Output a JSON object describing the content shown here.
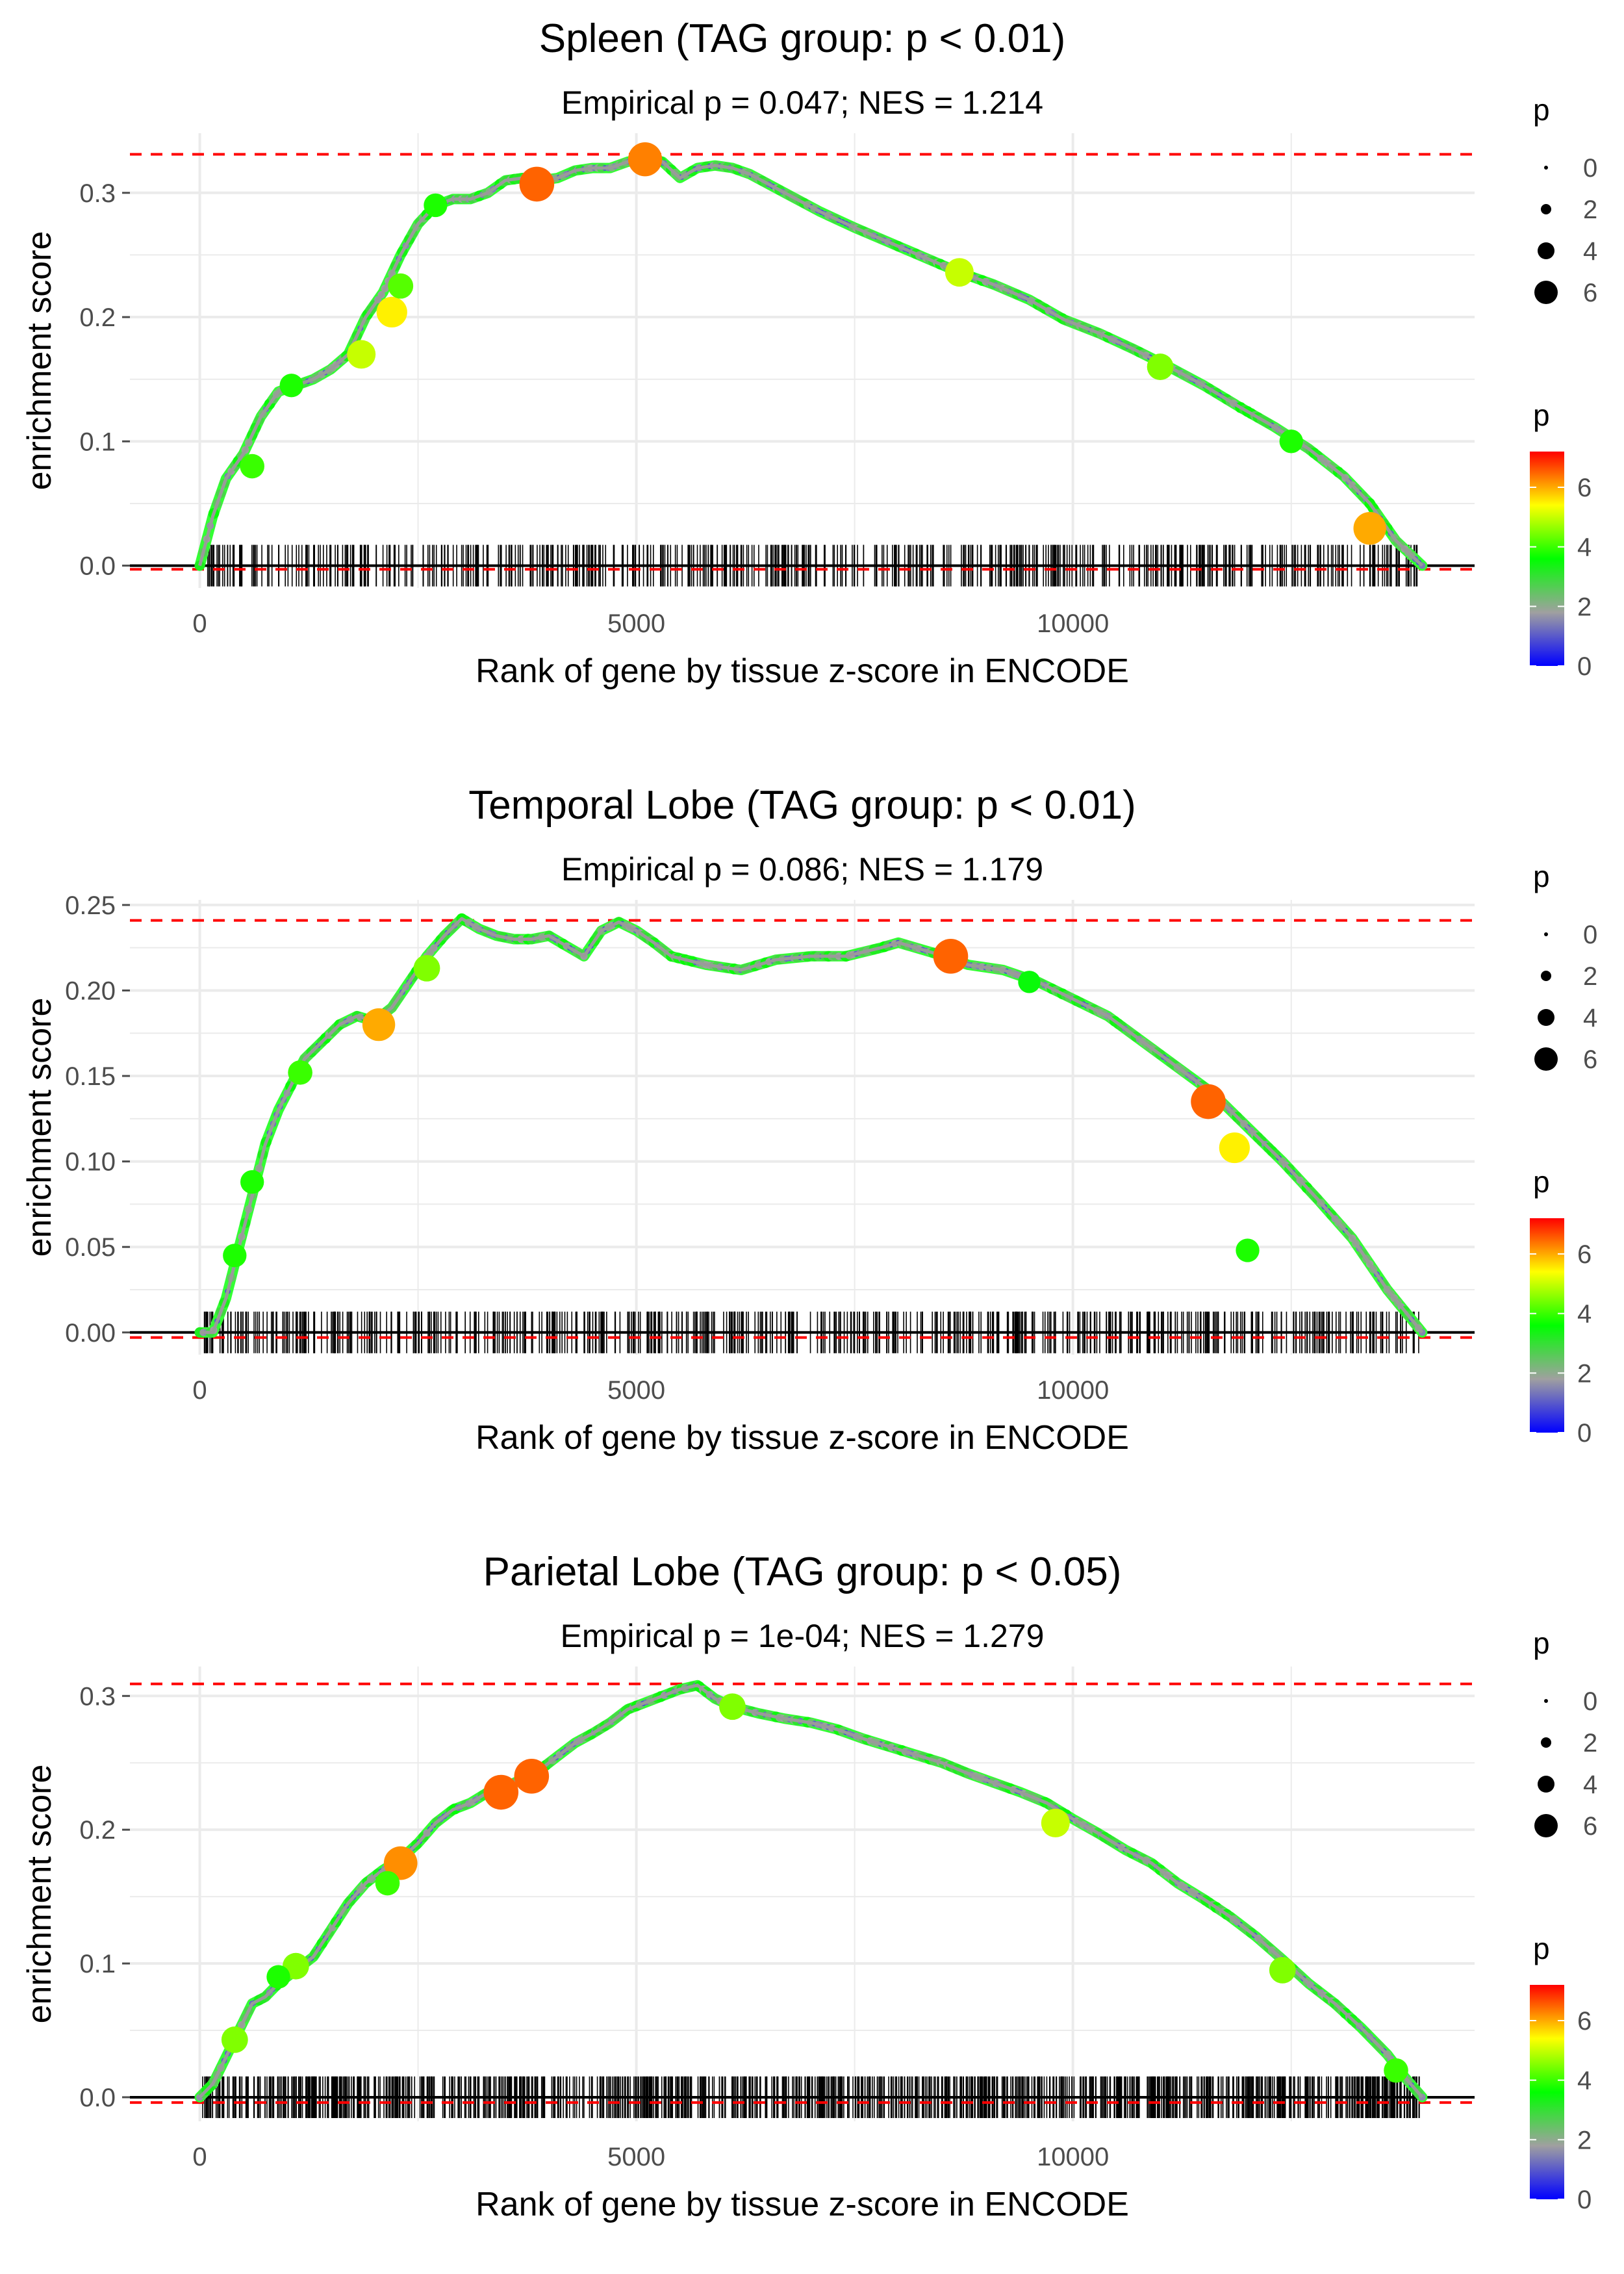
{
  "chart_data": [
    {
      "type": "line",
      "title": "Spleen (TAG group: p < 0.01)",
      "subtitle": "Empirical p = 0.047; NES = 1.214",
      "xlabel": "Rank of gene by tissue z-score in ENCODE",
      "ylabel": "enrichment score",
      "xlim": [
        -800,
        14600
      ],
      "ylim": [
        -0.018,
        0.348
      ],
      "x_ticks": [
        0,
        5000,
        10000
      ],
      "x_tick_labels": [
        "0",
        "5000",
        "10000"
      ],
      "y_ticks": [
        0.0,
        0.1,
        0.2,
        0.3
      ],
      "y_tick_labels": [
        "0.0",
        "0.1",
        "0.2",
        "0.3"
      ],
      "max_es_line": 0.331,
      "min_es_line": -0.003,
      "x_max_rank": 14000,
      "series": [
        {
          "name": "running enrichment score",
          "x": [
            0,
            150,
            300,
            500,
            700,
            900,
            1100,
            1300,
            1500,
            1700,
            1900,
            2100,
            2300,
            2500,
            2700,
            2900,
            3100,
            3300,
            3500,
            3700,
            3900,
            4100,
            4300,
            4500,
            4700,
            4900,
            5100,
            5300,
            5500,
            5700,
            5900,
            6100,
            6300,
            6700,
            7100,
            7500,
            7900,
            8300,
            8700,
            9100,
            9500,
            9900,
            10300,
            10700,
            11100,
            11500,
            11900,
            12300,
            12700,
            13100,
            13400,
            13700,
            14000
          ],
          "values": [
            0.0,
            0.04,
            0.07,
            0.09,
            0.12,
            0.14,
            0.145,
            0.15,
            0.158,
            0.17,
            0.2,
            0.22,
            0.25,
            0.275,
            0.29,
            0.295,
            0.295,
            0.3,
            0.31,
            0.312,
            0.31,
            0.312,
            0.318,
            0.32,
            0.32,
            0.325,
            0.328,
            0.325,
            0.312,
            0.32,
            0.322,
            0.32,
            0.315,
            0.3,
            0.285,
            0.272,
            0.26,
            0.248,
            0.236,
            0.226,
            0.214,
            0.198,
            0.187,
            0.174,
            0.16,
            0.145,
            0.128,
            0.112,
            0.094,
            0.072,
            0.05,
            0.02,
            0.0
          ]
        }
      ],
      "highlight_points": [
        {
          "x": 3860,
          "y": 0.307,
          "p": 6.5
        },
        {
          "x": 5100,
          "y": 0.327,
          "p": 6.3
        },
        {
          "x": 2200,
          "y": 0.204,
          "p": 5.5
        },
        {
          "x": 1850,
          "y": 0.17,
          "p": 5.0
        },
        {
          "x": 8700,
          "y": 0.236,
          "p": 5.0
        },
        {
          "x": 13400,
          "y": 0.03,
          "p": 6.0
        },
        {
          "x": 2300,
          "y": 0.225,
          "p": 4.2
        },
        {
          "x": 2700,
          "y": 0.29,
          "p": 3.8
        },
        {
          "x": 600,
          "y": 0.08,
          "p": 4.0
        },
        {
          "x": 1050,
          "y": 0.145,
          "p": 3.8
        },
        {
          "x": 11000,
          "y": 0.16,
          "p": 4.5
        },
        {
          "x": 12500,
          "y": 0.1,
          "p": 3.8
        }
      ],
      "gene_ticks_n": 600,
      "size_legend": {
        "title": "p",
        "values": [
          "0",
          "2",
          "4",
          "6"
        ]
      },
      "color_legend": {
        "title": "p",
        "ticks": [
          "0",
          "2",
          "4",
          "6"
        ],
        "range": [
          0,
          7.2
        ]
      }
    },
    {
      "type": "line",
      "title": "Temporal Lobe (TAG group: p < 0.01)",
      "subtitle": "Empirical p = 0.086; NES = 1.179",
      "xlabel": "Rank of gene by tissue z-score in ENCODE",
      "ylabel": "enrichment score",
      "xlim": [
        -800,
        14600
      ],
      "ylim": [
        -0.013,
        0.253
      ],
      "x_ticks": [
        0,
        5000,
        10000
      ],
      "x_tick_labels": [
        "0",
        "5000",
        "10000"
      ],
      "y_ticks": [
        0.0,
        0.05,
        0.1,
        0.15,
        0.2,
        0.25
      ],
      "y_tick_labels": [
        "0.00",
        "0.05",
        "0.10",
        "0.15",
        "0.20",
        "0.25"
      ],
      "max_es_line": 0.241,
      "min_es_line": -0.003,
      "x_max_rank": 14000,
      "series": [
        {
          "name": "running enrichment score",
          "x": [
            0,
            150,
            300,
            450,
            600,
            750,
            900,
            1050,
            1200,
            1400,
            1600,
            1800,
            2000,
            2200,
            2400,
            2600,
            2800,
            3000,
            3200,
            3400,
            3600,
            3800,
            4000,
            4200,
            4400,
            4600,
            4800,
            5000,
            5200,
            5400,
            5800,
            6200,
            6600,
            7000,
            7400,
            7800,
            8000,
            8400,
            8800,
            9200,
            9600,
            10000,
            10400,
            10800,
            11200,
            11600,
            12000,
            12400,
            12800,
            13200,
            13600,
            14000
          ],
          "values": [
            0.0,
            0.0,
            0.02,
            0.05,
            0.08,
            0.11,
            0.13,
            0.145,
            0.16,
            0.17,
            0.18,
            0.185,
            0.182,
            0.19,
            0.205,
            0.22,
            0.232,
            0.242,
            0.236,
            0.232,
            0.23,
            0.23,
            0.232,
            0.226,
            0.22,
            0.235,
            0.24,
            0.235,
            0.228,
            0.22,
            0.215,
            0.212,
            0.218,
            0.22,
            0.22,
            0.225,
            0.228,
            0.222,
            0.215,
            0.212,
            0.205,
            0.195,
            0.185,
            0.17,
            0.155,
            0.14,
            0.12,
            0.1,
            0.078,
            0.055,
            0.025,
            0.0
          ]
        }
      ],
      "highlight_points": [
        {
          "x": 2050,
          "y": 0.18,
          "p": 6.0
        },
        {
          "x": 8600,
          "y": 0.22,
          "p": 6.5
        },
        {
          "x": 11550,
          "y": 0.135,
          "p": 6.5
        },
        {
          "x": 11850,
          "y": 0.108,
          "p": 5.5
        },
        {
          "x": 2600,
          "y": 0.213,
          "p": 4.5
        },
        {
          "x": 1150,
          "y": 0.152,
          "p": 4.0
        },
        {
          "x": 600,
          "y": 0.088,
          "p": 3.8
        },
        {
          "x": 400,
          "y": 0.045,
          "p": 3.8
        },
        {
          "x": 9500,
          "y": 0.205,
          "p": 3.5
        },
        {
          "x": 12000,
          "y": 0.048,
          "p": 3.8
        }
      ],
      "gene_ticks_n": 600,
      "size_legend": {
        "title": "p",
        "values": [
          "0",
          "2",
          "4",
          "6"
        ]
      },
      "color_legend": {
        "title": "p",
        "ticks": [
          "0",
          "2",
          "4",
          "6"
        ],
        "range": [
          0,
          7.2
        ]
      }
    },
    {
      "type": "line",
      "title": "Parietal Lobe (TAG group: p < 0.05)",
      "subtitle": "Empirical p = 1e-04; NES = 1.279",
      "xlabel": "Rank of gene by tissue z-score in ENCODE",
      "ylabel": "enrichment score",
      "xlim": [
        -800,
        14600
      ],
      "ylim": [
        -0.018,
        0.322
      ],
      "x_ticks": [
        0,
        5000,
        10000
      ],
      "x_tick_labels": [
        "0",
        "5000",
        "10000"
      ],
      "y_ticks": [
        0.0,
        0.1,
        0.2,
        0.3
      ],
      "y_tick_labels": [
        "0.0",
        "0.1",
        "0.2",
        "0.3"
      ],
      "max_es_line": 0.309,
      "min_es_line": -0.004,
      "x_max_rank": 14000,
      "series": [
        {
          "name": "running enrichment score",
          "x": [
            0,
            150,
            300,
            450,
            600,
            750,
            900,
            1100,
            1300,
            1500,
            1700,
            1900,
            2100,
            2300,
            2500,
            2700,
            2900,
            3100,
            3300,
            3500,
            3700,
            3900,
            4100,
            4300,
            4500,
            4700,
            4900,
            5100,
            5300,
            5500,
            5700,
            5900,
            6100,
            6400,
            6700,
            7000,
            7300,
            7600,
            7900,
            8200,
            8500,
            8800,
            9100,
            9400,
            9700,
            10000,
            10300,
            10600,
            10900,
            11200,
            11500,
            11800,
            12100,
            12400,
            12700,
            13000,
            13300,
            13600,
            13800,
            14000
          ],
          "values": [
            0.0,
            0.01,
            0.03,
            0.05,
            0.07,
            0.075,
            0.085,
            0.095,
            0.105,
            0.125,
            0.145,
            0.16,
            0.17,
            0.178,
            0.19,
            0.205,
            0.215,
            0.22,
            0.228,
            0.232,
            0.238,
            0.245,
            0.255,
            0.265,
            0.272,
            0.28,
            0.29,
            0.295,
            0.3,
            0.305,
            0.308,
            0.298,
            0.292,
            0.287,
            0.283,
            0.28,
            0.275,
            0.268,
            0.262,
            0.256,
            0.25,
            0.242,
            0.235,
            0.228,
            0.22,
            0.208,
            0.197,
            0.185,
            0.175,
            0.16,
            0.148,
            0.135,
            0.12,
            0.103,
            0.085,
            0.07,
            0.052,
            0.032,
            0.015,
            0.0
          ]
        }
      ],
      "highlight_points": [
        {
          "x": 2300,
          "y": 0.175,
          "p": 6.2
        },
        {
          "x": 3450,
          "y": 0.228,
          "p": 6.5
        },
        {
          "x": 3800,
          "y": 0.24,
          "p": 6.5
        },
        {
          "x": 2150,
          "y": 0.16,
          "p": 4.0
        },
        {
          "x": 1100,
          "y": 0.098,
          "p": 4.5
        },
        {
          "x": 900,
          "y": 0.09,
          "p": 3.8
        },
        {
          "x": 400,
          "y": 0.043,
          "p": 4.5
        },
        {
          "x": 6100,
          "y": 0.292,
          "p": 4.5
        },
        {
          "x": 9800,
          "y": 0.205,
          "p": 5.0
        },
        {
          "x": 12400,
          "y": 0.095,
          "p": 4.5
        },
        {
          "x": 13700,
          "y": 0.02,
          "p": 4.0
        }
      ],
      "gene_ticks_n": 1100,
      "size_legend": {
        "title": "p",
        "values": [
          "0",
          "2",
          "4",
          "6"
        ]
      },
      "color_legend": {
        "title": "p",
        "ticks": [
          "0",
          "2",
          "4",
          "6"
        ],
        "range": [
          0,
          7.2
        ]
      }
    }
  ],
  "colors": {
    "background": "#ffffff",
    "grid": "#ebebeb",
    "text": "#000000",
    "axis_text": "#4d4d4d",
    "reference_line": "#ff0000",
    "zero_line": "#000000",
    "gradient": [
      "#0000ff",
      "#a0a0a0",
      "#00ff00",
      "#ffff00",
      "#ff0000"
    ]
  }
}
